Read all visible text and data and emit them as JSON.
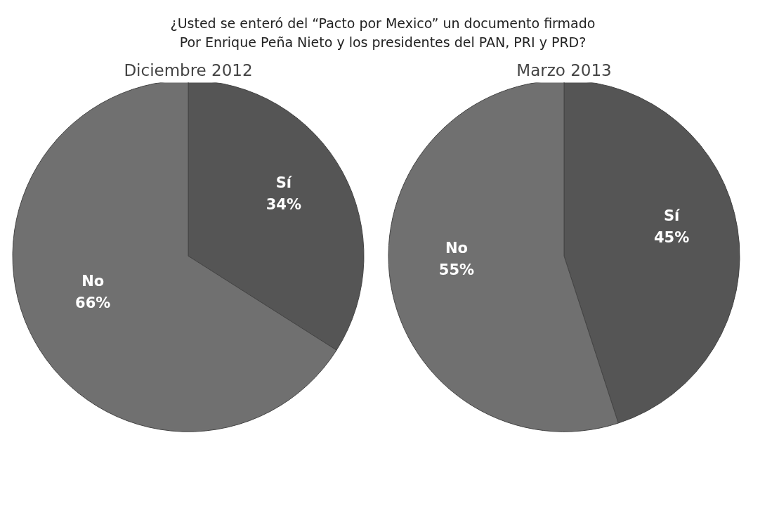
{
  "chart_data": [
    {
      "type": "pie",
      "title": "Diciembre 2012",
      "annotations": [
        "¿Usted se enteró del “Pacto por Mexico” un documento firmado\nPor Enrique Peña Nieto y los presidentes del PAN, PRI y PRD?"
      ],
      "categories": [
        "Sí",
        "No"
      ],
      "values": [
        34,
        66
      ],
      "value_labels": [
        "34%",
        "66%"
      ],
      "colors": [
        "#555555",
        "#707070"
      ]
    },
    {
      "type": "pie",
      "title": "Marzo 2013",
      "categories": [
        "Sí",
        "No"
      ],
      "values": [
        45,
        55
      ],
      "value_labels": [
        "45%",
        "55%"
      ],
      "colors": [
        "#555555",
        "#707070"
      ]
    }
  ]
}
